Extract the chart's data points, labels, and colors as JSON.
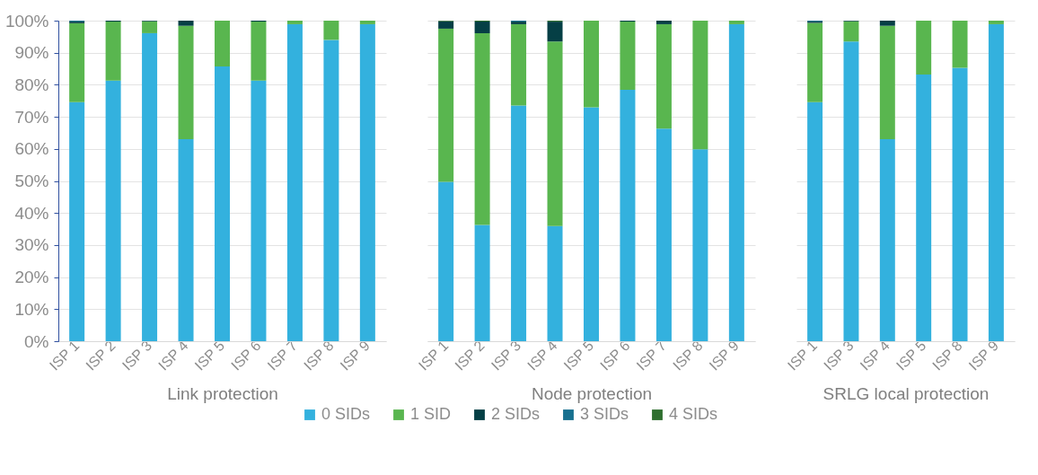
{
  "chart_data": [
    {
      "type": "bar",
      "stacked": true,
      "xlabel": "Link protection",
      "categories": [
        "ISP 1",
        "ISP 2",
        "ISP 3",
        "ISP 4",
        "ISP 5",
        "ISP 6",
        "ISP 7",
        "ISP 8",
        "ISP 9"
      ],
      "ylim": [
        0,
        100
      ],
      "yticks": [
        {
          "value": 0,
          "label": "0%"
        },
        {
          "value": 10,
          "label": "10%"
        },
        {
          "value": 20,
          "label": "20%"
        },
        {
          "value": 30,
          "label": "30%"
        },
        {
          "value": 40,
          "label": "40%"
        },
        {
          "value": 50,
          "label": "50%"
        },
        {
          "value": 60,
          "label": "60%"
        },
        {
          "value": 70,
          "label": "70%"
        },
        {
          "value": 80,
          "label": "80%"
        },
        {
          "value": 90,
          "label": "90%"
        },
        {
          "value": 100,
          "label": "100%"
        }
      ],
      "grid": "y",
      "legend": "bottom",
      "series": [
        {
          "name": "0 SIDs",
          "color": "#33b1de",
          "values": [
            74.6,
            81.3,
            96.1,
            63,
            85.7,
            81.3,
            98.9,
            94,
            98.9
          ]
        },
        {
          "name": "1 SID",
          "color": "#59b64f",
          "values": [
            24.6,
            18.4,
            3.7,
            35.4,
            14.3,
            18.4,
            1.1,
            6,
            1.1
          ]
        },
        {
          "name": "2 SIDs",
          "color": "#053f45",
          "values": [
            0.5,
            0.3,
            0.2,
            1.6,
            0,
            0.3,
            0,
            0,
            0
          ]
        },
        {
          "name": "3 SIDs",
          "color": "#17708f",
          "values": [
            0.3,
            0,
            0,
            0,
            0,
            0,
            0,
            0,
            0
          ]
        },
        {
          "name": "4 SIDs",
          "color": "#2f6f2f",
          "values": [
            0,
            0,
            0,
            0,
            0,
            0,
            0,
            0,
            0
          ]
        }
      ]
    },
    {
      "type": "bar",
      "stacked": true,
      "xlabel": "Node protection",
      "categories": [
        "ISP 1",
        "ISP 2",
        "ISP 3",
        "ISP 4",
        "ISP 5",
        "ISP 6",
        "ISP 7",
        "ISP 8",
        "ISP 9"
      ],
      "ylim": [
        0,
        100
      ],
      "yticks": [
        {
          "value": 0,
          "label": null
        },
        {
          "value": 10,
          "label": null
        },
        {
          "value": 20,
          "label": null
        },
        {
          "value": 30,
          "label": null
        },
        {
          "value": 40,
          "label": null
        },
        {
          "value": 50,
          "label": null
        },
        {
          "value": 60,
          "label": null
        },
        {
          "value": 70,
          "label": null
        },
        {
          "value": 80,
          "label": null
        },
        {
          "value": 90,
          "label": null
        },
        {
          "value": 100,
          "label": null
        }
      ],
      "grid": "y",
      "tick_labels": "x",
      "series": [
        {
          "color": "#33b1de",
          "values": [
            49.7,
            36.3,
            73.5,
            35.9,
            73,
            78.4,
            66.3,
            59.9,
            98.9
          ]
        },
        {
          "color": "#59b64f",
          "values": [
            47.8,
            59.8,
            25.4,
            57.6,
            27,
            21.3,
            32.6,
            40.1,
            1.1
          ]
        },
        {
          "color": "#053f45",
          "values": [
            2.3,
            3.6,
            0.8,
            6.2,
            0,
            0.3,
            1.1,
            0,
            0
          ]
        },
        {
          "color": "#17708f",
          "values": [
            0,
            0,
            0.3,
            0,
            0,
            0,
            0,
            0,
            0
          ]
        },
        {
          "color": "#2f6f2f",
          "values": [
            0.2,
            0.3,
            0,
            0.3,
            0,
            0,
            0,
            0,
            0
          ]
        }
      ]
    },
    {
      "type": "bar",
      "stacked": true,
      "xlabel": "SRLG local protection",
      "categories": [
        "ISP 1",
        "ISP 3",
        "ISP 4",
        "ISP 5",
        "ISP 8",
        "ISP 9"
      ],
      "ylim": [
        0,
        100
      ],
      "yticks": [
        {
          "value": 0,
          "label": null
        },
        {
          "value": 10,
          "label": null
        },
        {
          "value": 20,
          "label": null
        },
        {
          "value": 30,
          "label": null
        },
        {
          "value": 40,
          "label": null
        },
        {
          "value": 50,
          "label": null
        },
        {
          "value": 60,
          "label": null
        },
        {
          "value": 70,
          "label": null
        },
        {
          "value": 80,
          "label": null
        },
        {
          "value": 90,
          "label": null
        },
        {
          "value": 100,
          "label": null
        }
      ],
      "grid": "y",
      "tick_labels": "x",
      "series": [
        {
          "color": "#33b1de",
          "values": [
            74.6,
            93.5,
            63,
            83.2,
            85.3,
            98.9
          ]
        },
        {
          "color": "#59b64f",
          "values": [
            24.7,
            6.3,
            35.4,
            16.8,
            14.7,
            1.1
          ]
        },
        {
          "color": "#053f45",
          "values": [
            0.4,
            0.2,
            1.6,
            0,
            0,
            0
          ]
        },
        {
          "color": "#17708f",
          "values": [
            0.3,
            0,
            0,
            0,
            0,
            0
          ]
        },
        {
          "color": "#2f6f2f",
          "values": [
            0,
            0,
            0,
            0,
            0,
            0
          ]
        }
      ]
    }
  ]
}
